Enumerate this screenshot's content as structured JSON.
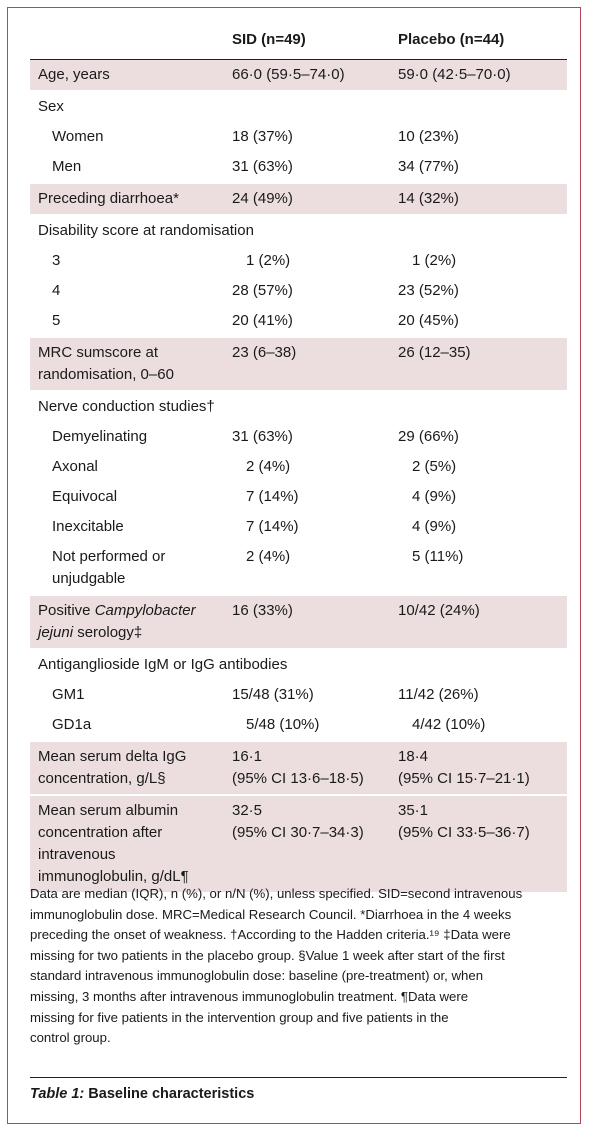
{
  "header": {
    "col1": "",
    "col2": "SID (n=49)",
    "col3": "Placebo (n=44)"
  },
  "rows": {
    "age": {
      "label": "Age, years",
      "sid": "66·0 (59·5–74·0)",
      "placebo": "59·0 (42·5–70·0)"
    },
    "sex": {
      "label": "Sex"
    },
    "women": {
      "label": "Women",
      "sid": "18 (37%)",
      "placebo": "10 (23%)"
    },
    "men": {
      "label": "Men",
      "sid": "31 (63%)",
      "placebo": "34 (77%)"
    },
    "diarrhoea": {
      "label": "Preceding diarrhoea*",
      "sid": "24 (49%)",
      "placebo": "14 (32%)"
    },
    "disability": {
      "label": "Disability score at randomisation"
    },
    "d3": {
      "label": "3",
      "sid": "1 (2%)",
      "placebo": "1 (2%)"
    },
    "d4": {
      "label": "4",
      "sid": "28 (57%)",
      "placebo": "23 (52%)"
    },
    "d5": {
      "label": "5",
      "sid": "20 (41%)",
      "placebo": "20 (45%)"
    },
    "mrc": {
      "label_line1": "MRC sumscore at",
      "label_line2": "randomisation, 0–60",
      "sid": "23 (6–38)",
      "placebo": "26 (12–35)"
    },
    "ncs": {
      "label": "Nerve conduction studies†"
    },
    "demyelinating": {
      "label": "Demyelinating",
      "sid": "31 (63%)",
      "placebo": "29 (66%)"
    },
    "axonal": {
      "label": "Axonal",
      "sid": "2 (4%)",
      "placebo": "2 (5%)"
    },
    "equivocal": {
      "label": "Equivocal",
      "sid": "7 (14%)",
      "placebo": "4 (9%)"
    },
    "inexcitable": {
      "label": "Inexcitable",
      "sid": "7 (14%)",
      "placebo": "4 (9%)"
    },
    "notperformed": {
      "label_line1": "Not performed or",
      "label_line2": "unjudgable",
      "sid": "2 (4%)",
      "placebo": "5 (11%)"
    },
    "campylobacter": {
      "label_a": "Positive ",
      "label_b": "Campylobacter",
      "label_c": "jejuni",
      "label_d": " serology‡",
      "sid": "16 (33%)",
      "placebo": "10/42 (24%)"
    },
    "antiganglioside": {
      "label": "Antiganglioside IgM or IgG antibodies"
    },
    "gm1": {
      "label": "GM1",
      "sid": "15/48 (31%)",
      "placebo": "11/42 (26%)"
    },
    "gd1a": {
      "label": "GD1a",
      "sid": "5/48 (10%)",
      "placebo": "4/42 (10%)"
    },
    "igg": {
      "label_line1": "Mean serum delta IgG",
      "label_line2": "concentration, g/L§",
      "sid_line1": "16·1",
      "sid_line2": "(95% CI 13·6–18·5)",
      "placebo_line1": "18·4",
      "placebo_line2": "(95% CI 15·7–21·1)"
    },
    "albumin": {
      "label_line1": "Mean serum albumin",
      "label_line2": "concentration after",
      "label_line3": "intravenous",
      "label_line4": "immunoglobulin, g/dL¶",
      "sid_line1": "32·5",
      "sid_line2": "(95% CI 30·7–34·3)",
      "placebo_line1": "35·1",
      "placebo_line2": "(95% CI 33·5–36·7)"
    }
  },
  "footnote": {
    "line1": "Data are median (IQR), n (%), or n/N (%), unless specified. SID=second intravenous",
    "line2": "immunoglobulin dose. MRC=Medical Research Council. *Diarrhoea in the 4 weeks",
    "line3": "preceding the onset of weakness. †According to the Hadden criteria.¹⁹ ‡Data were",
    "line4": "missing for two patients in the placebo group. §Value 1 week after start of the first",
    "line5": "standard intravenous immunoglobulin dose: baseline (pre-treatment) or, when",
    "line6": "missing, 3 months after intravenous immunoglobulin treatment. ¶Data were",
    "line7": "missing for five patients in the intervention group and five patients in the",
    "line8": "control group."
  },
  "caption": {
    "label": "Table 1:",
    "title": " Baseline characteristics"
  },
  "colors": {
    "shade": "#ecdede",
    "border": "#b5475a"
  }
}
